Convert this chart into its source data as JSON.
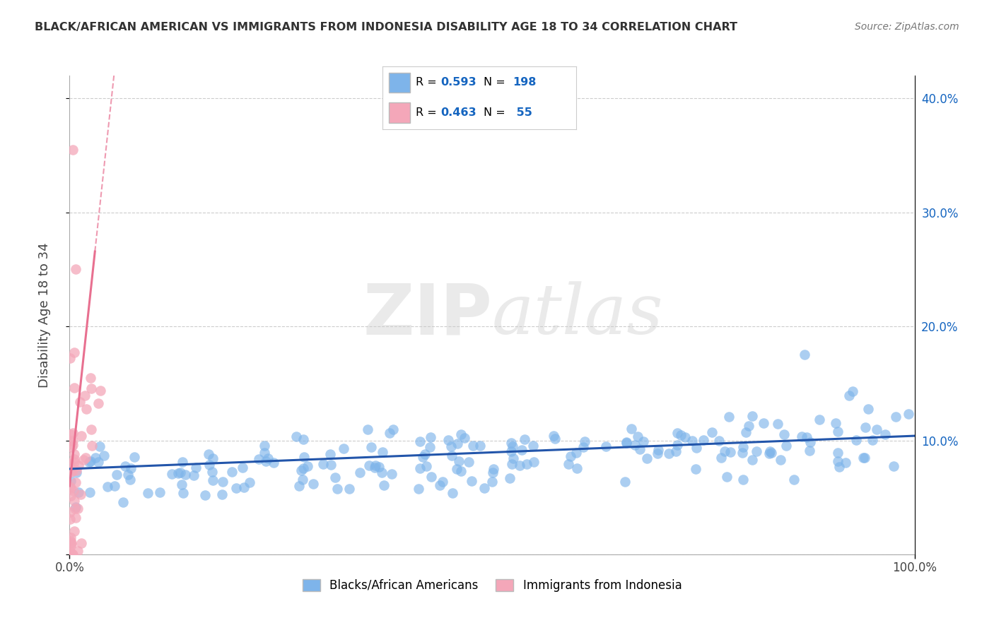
{
  "title": "BLACK/AFRICAN AMERICAN VS IMMIGRANTS FROM INDONESIA DISABILITY AGE 18 TO 34 CORRELATION CHART",
  "source": "Source: ZipAtlas.com",
  "ylabel": "Disability Age 18 to 34",
  "watermark_zip": "ZIP",
  "watermark_atlas": "atlas",
  "blue_R": 0.593,
  "blue_N": 198,
  "pink_R": 0.463,
  "pink_N": 55,
  "blue_label": "Blacks/African Americans",
  "pink_label": "Immigrants from Indonesia",
  "xlim": [
    0.0,
    1.0
  ],
  "ylim": [
    0.0,
    0.42
  ],
  "yticks": [
    0.0,
    0.1,
    0.2,
    0.3,
    0.4
  ],
  "xticks": [
    0.0,
    1.0
  ],
  "xtick_labels": [
    "0.0%",
    "100.0%"
  ],
  "blue_color": "#7EB4EA",
  "pink_color": "#F4A7B9",
  "blue_line_color": "#2255AA",
  "pink_line_color": "#E87090",
  "title_color": "#333333",
  "source_color": "#777777",
  "grid_color": "#CCCCCC",
  "watermark_color": "#CCCCCC",
  "background_color": "#FFFFFF",
  "legend_text_color": "#1565C0",
  "right_axis_color": "#1565C0"
}
